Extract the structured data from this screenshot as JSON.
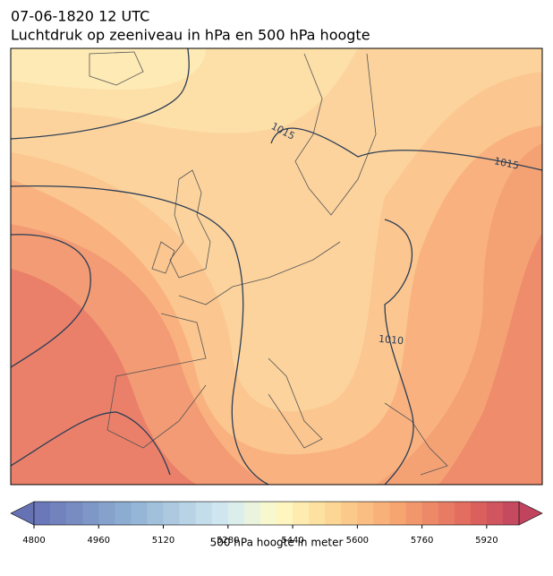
{
  "header": {
    "title": "07-06-1820 12 UTC",
    "subtitle": "Luchtdruk op zeeniveau in hPa en 500 hPa hoogte"
  },
  "isobar_labels": [
    1015,
    1015,
    1010
  ],
  "colorbar": {
    "label": "500 hPa hoogte in meter",
    "lim": [
      4800,
      6000
    ],
    "step": 40,
    "colormap": "RdYlBu_r",
    "ticks": [
      4800,
      4960,
      5120,
      5280,
      5440,
      5600,
      5760,
      5920
    ]
  }
}
